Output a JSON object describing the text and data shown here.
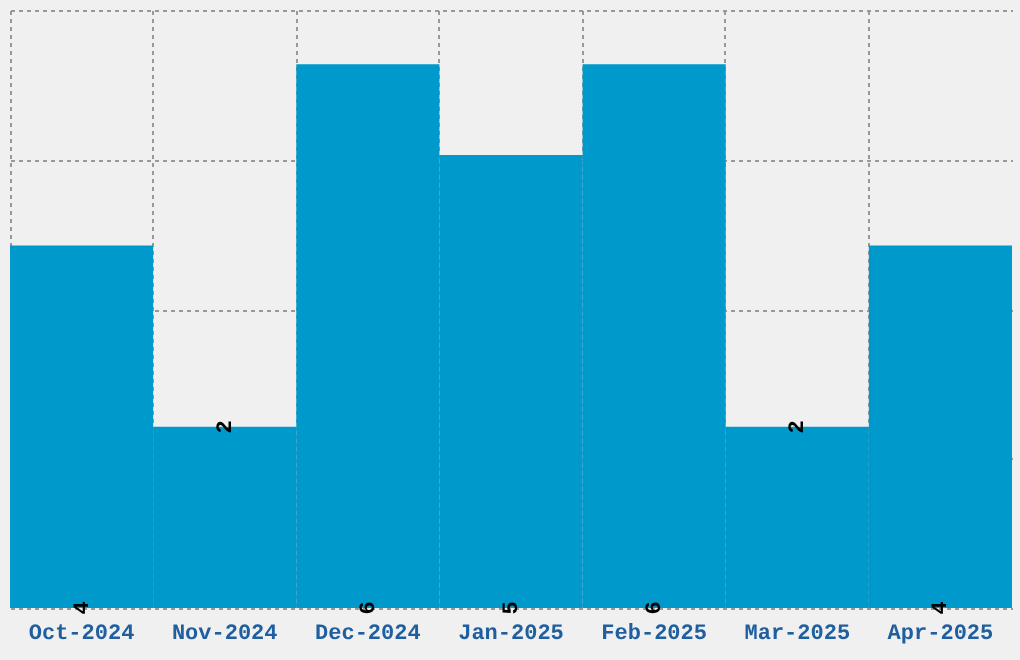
{
  "chart_data": {
    "type": "bar",
    "categories": [
      "Oct-2024",
      "Nov-2024",
      "Dec-2024",
      "Jan-2025",
      "Feb-2025",
      "Mar-2025",
      "Apr-2025"
    ],
    "values": [
      4,
      2,
      6,
      5,
      6,
      2,
      4
    ],
    "color": "#0099cc",
    "data_labels": true,
    "grid": true,
    "tick_labels": "x",
    "ylim": [
      0,
      6.6
    ],
    "yticks": [
      {
        "value": 0,
        "label": null
      },
      {
        "value": 1.65,
        "label": null
      },
      {
        "value": 3.3,
        "label": null
      },
      {
        "value": 4.95,
        "label": null
      },
      {
        "value": 6.6,
        "label": null
      }
    ]
  }
}
